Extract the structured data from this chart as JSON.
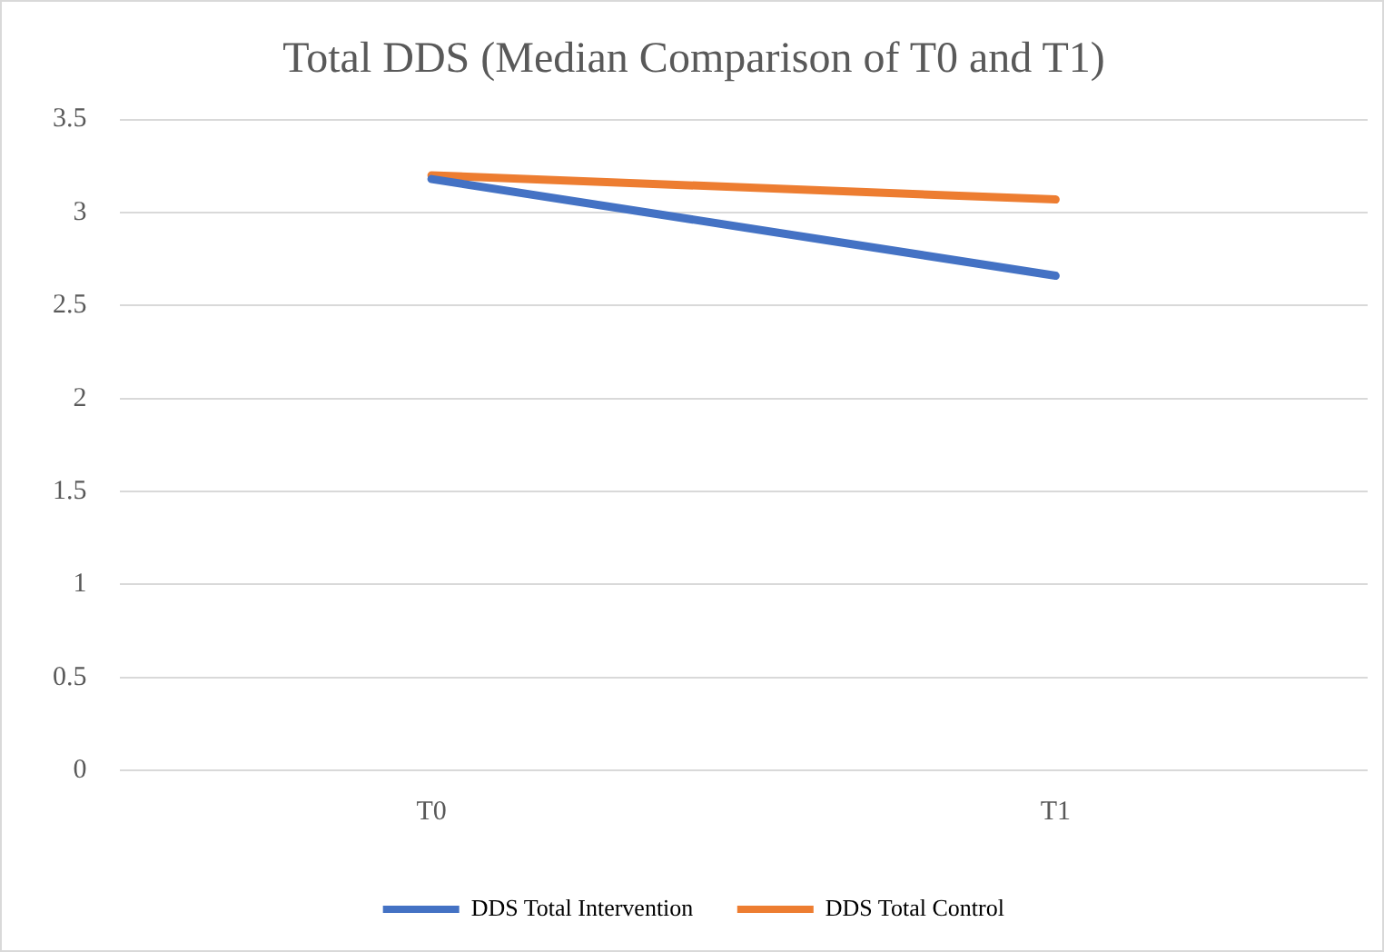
{
  "chart_data": {
    "type": "line",
    "title": "Total DDS (Median Comparison of T0 and T1)",
    "categories": [
      "T0",
      "T1"
    ],
    "series": [
      {
        "name": "DDS Total Intervention",
        "color": "#4472c4",
        "values": [
          3.18,
          2.66
        ]
      },
      {
        "name": "DDS Total Control",
        "color": "#ed7d31",
        "values": [
          3.2,
          3.07
        ]
      }
    ],
    "ylim": [
      0,
      3.5
    ],
    "yticks": [
      0,
      0.5,
      1,
      1.5,
      2,
      2.5,
      3,
      3.5
    ],
    "grid": "y",
    "legend": "bottom",
    "marker": "none",
    "line_style": "solid"
  }
}
